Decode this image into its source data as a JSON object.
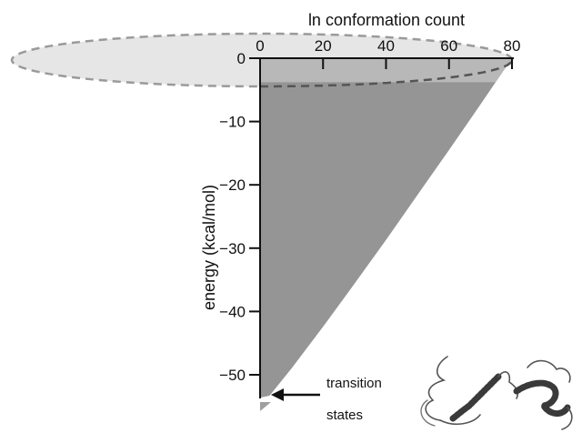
{
  "chart_data": {
    "type": "area",
    "x_axis": {
      "label": "ln conformation count",
      "ticks": [
        0,
        20,
        40,
        60,
        80
      ],
      "range": [
        0,
        80
      ],
      "position": "top"
    },
    "y_axis": {
      "label": "energy (kcal/mol)",
      "ticks": [
        0,
        -10,
        -20,
        -30,
        -40,
        -50
      ],
      "tick_labels": [
        "0",
        "−10",
        "−20",
        "−30",
        "−40",
        "−50"
      ],
      "range": [
        -54,
        0
      ]
    },
    "funnel_edge": {
      "x": [
        80,
        70,
        60,
        50,
        40,
        30,
        20,
        10,
        3,
        0
      ],
      "y": [
        0,
        -7.3,
        -14.5,
        -21.6,
        -28.7,
        -35.6,
        -42.4,
        -49.0,
        -53.3,
        -53.6
      ]
    },
    "annotations": [
      {
        "text": "transition",
        "target": "funnel bottom"
      },
      {
        "text": "states",
        "target": "funnel bottom"
      }
    ],
    "colors": {
      "funnel_fill": "#959595",
      "funnel_top_band": "#b8b8b8",
      "ellipse_fill": "#e6e6e6",
      "ellipse_stroke": "#9a9a9a",
      "protein": "#444444"
    }
  }
}
